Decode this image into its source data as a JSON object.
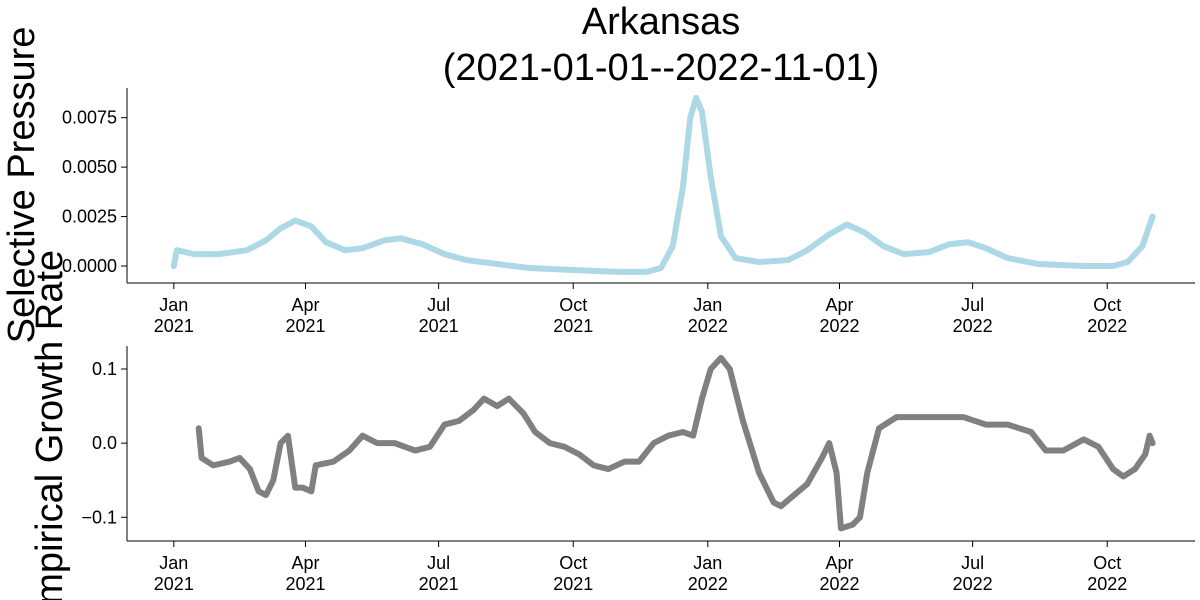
{
  "chart_data": [
    {
      "type": "line",
      "title": "Arkansas",
      "subtitle": "(2021-01-01--2022-11-01)",
      "ylabel": "Selective Pressure",
      "xlim": [
        "2020-11-30",
        "2022-11-30"
      ],
      "xticks": [
        {
          "value": "2021-01-01",
          "label": [
            "Jan",
            "2021"
          ]
        },
        {
          "value": "2021-04-01",
          "label": [
            "Apr",
            "2021"
          ]
        },
        {
          "value": "2021-07-01",
          "label": [
            "Jul",
            "2021"
          ]
        },
        {
          "value": "2021-10-01",
          "label": [
            "Oct",
            "2021"
          ]
        },
        {
          "value": "2022-01-01",
          "label": [
            "Jan",
            "2022"
          ]
        },
        {
          "value": "2022-04-01",
          "label": [
            "Apr",
            "2022"
          ]
        },
        {
          "value": "2022-07-01",
          "label": [
            "Jul",
            "2022"
          ]
        },
        {
          "value": "2022-10-01",
          "label": [
            "Oct",
            "2022"
          ]
        }
      ],
      "ylim": [
        -0.00086,
        0.009
      ],
      "yticks": [
        {
          "value": 0,
          "label": "0.0000"
        },
        0.0025,
        {
          "value": 0.005,
          "label": "0.0050"
        },
        0.0075
      ],
      "x": [
        "2021-01-01",
        "2021-01-03",
        "2021-01-15",
        "2021-02-01",
        "2021-02-20",
        "2021-03-05",
        "2021-03-15",
        "2021-03-25",
        "2021-04-05",
        "2021-04-15",
        "2021-04-28",
        "2021-05-10",
        "2021-05-25",
        "2021-06-05",
        "2021-06-20",
        "2021-07-05",
        "2021-07-20",
        "2021-08-10",
        "2021-09-01",
        "2021-10-01",
        "2021-11-01",
        "2021-11-20",
        "2021-11-30",
        "2021-12-08",
        "2021-12-15",
        "2021-12-20",
        "2021-12-24",
        "2021-12-28",
        "2022-01-03",
        "2022-01-10",
        "2022-01-20",
        "2022-02-05",
        "2022-02-25",
        "2022-03-10",
        "2022-03-25",
        "2022-04-06",
        "2022-04-18",
        "2022-05-01",
        "2022-05-15",
        "2022-06-01",
        "2022-06-15",
        "2022-06-28",
        "2022-07-10",
        "2022-07-25",
        "2022-08-15",
        "2022-09-15",
        "2022-10-05",
        "2022-10-15",
        "2022-10-25",
        "2022-11-01"
      ],
      "series": [
        {
          "color": "#add8e6",
          "values": [
            0.0,
            0.0008,
            0.0006,
            0.0006,
            0.0008,
            0.0013,
            0.0019,
            0.0023,
            0.002,
            0.0012,
            0.0008,
            0.0009,
            0.0013,
            0.0014,
            0.0011,
            0.0006,
            0.0003,
            0.0001,
            -0.0001,
            -0.0002,
            -0.0003,
            -0.0003,
            -0.0001,
            0.001,
            0.004,
            0.0075,
            0.0085,
            0.0078,
            0.0045,
            0.0015,
            0.0004,
            0.0002,
            0.0003,
            0.0008,
            0.0016,
            0.0021,
            0.0017,
            0.001,
            0.0006,
            0.0007,
            0.0011,
            0.0012,
            0.0009,
            0.0004,
            0.0001,
            0.0,
            0.0,
            0.0002,
            0.001,
            0.0025
          ]
        }
      ]
    },
    {
      "type": "line",
      "ylabel": "Empirical Growth Rate",
      "xlim": [
        "2020-11-30",
        "2022-11-30"
      ],
      "xticks": [
        {
          "value": "2021-01-01",
          "label": [
            "Jan",
            "2021"
          ]
        },
        {
          "value": "2021-04-01",
          "label": [
            "Apr",
            "2021"
          ]
        },
        {
          "value": "2021-07-01",
          "label": [
            "Jul",
            "2021"
          ]
        },
        {
          "value": "2021-10-01",
          "label": [
            "Oct",
            "2021"
          ]
        },
        {
          "value": "2022-01-01",
          "label": [
            "Jan",
            "2022"
          ]
        },
        {
          "value": "2022-04-01",
          "label": [
            "Apr",
            "2022"
          ]
        },
        {
          "value": "2022-07-01",
          "label": [
            "Jul",
            "2022"
          ]
        },
        {
          "value": "2022-10-01",
          "label": [
            "Oct",
            "2022"
          ]
        }
      ],
      "ylim": [
        -0.132,
        0.131
      ],
      "yticks": [
        {
          "value": -0.1,
          "label": "−0.1"
        },
        {
          "value": 0,
          "label": "0.0"
        },
        0.1
      ],
      "x": [
        "2021-01-18",
        "2021-01-20",
        "2021-01-28",
        "2021-02-08",
        "2021-02-15",
        "2021-02-22",
        "2021-02-28",
        "2021-03-05",
        "2021-03-10",
        "2021-03-15",
        "2021-03-20",
        "2021-03-25",
        "2021-03-30",
        "2021-04-05",
        "2021-04-08",
        "2021-04-20",
        "2021-05-01",
        "2021-05-10",
        "2021-05-20",
        "2021-06-01",
        "2021-06-15",
        "2021-06-25",
        "2021-07-05",
        "2021-07-15",
        "2021-07-25",
        "2021-08-01",
        "2021-08-10",
        "2021-08-18",
        "2021-08-28",
        "2021-09-05",
        "2021-09-15",
        "2021-09-25",
        "2021-10-05",
        "2021-10-15",
        "2021-10-25",
        "2021-11-05",
        "2021-11-15",
        "2021-11-25",
        "2021-12-05",
        "2021-12-15",
        "2021-12-22",
        "2021-12-28",
        "2022-01-03",
        "2022-01-10",
        "2022-01-16",
        "2022-01-25",
        "2022-02-05",
        "2022-02-15",
        "2022-02-20",
        "2022-03-01",
        "2022-03-10",
        "2022-03-20",
        "2022-03-25",
        "2022-03-30",
        "2022-04-02",
        "2022-04-10",
        "2022-04-15",
        "2022-04-20",
        "2022-04-28",
        "2022-05-10",
        "2022-05-25",
        "2022-06-10",
        "2022-06-25",
        "2022-07-10",
        "2022-07-25",
        "2022-08-10",
        "2022-08-20",
        "2022-09-01",
        "2022-09-15",
        "2022-09-25",
        "2022-10-05",
        "2022-10-12",
        "2022-10-20",
        "2022-10-27",
        "2022-10-30",
        "2022-11-01"
      ],
      "series": [
        {
          "color": "#808080",
          "values": [
            0.02,
            -0.02,
            -0.03,
            -0.025,
            -0.02,
            -0.035,
            -0.065,
            -0.07,
            -0.05,
            0.0,
            0.01,
            -0.06,
            -0.06,
            -0.065,
            -0.03,
            -0.025,
            -0.01,
            0.01,
            0.0,
            0.0,
            -0.01,
            -0.005,
            0.025,
            0.03,
            0.045,
            0.06,
            0.05,
            0.06,
            0.04,
            0.015,
            0.0,
            -0.005,
            -0.015,
            -0.03,
            -0.035,
            -0.025,
            -0.025,
            0.0,
            0.01,
            0.015,
            0.01,
            0.06,
            0.1,
            0.115,
            0.1,
            0.03,
            -0.04,
            -0.08,
            -0.085,
            -0.07,
            -0.055,
            -0.02,
            0.0,
            -0.04,
            -0.115,
            -0.11,
            -0.1,
            -0.04,
            0.02,
            0.035,
            0.035,
            0.035,
            0.035,
            0.025,
            0.025,
            0.015,
            -0.01,
            -0.01,
            0.005,
            -0.005,
            -0.035,
            -0.045,
            -0.035,
            -0.015,
            0.01,
            0.0
          ]
        }
      ]
    }
  ]
}
